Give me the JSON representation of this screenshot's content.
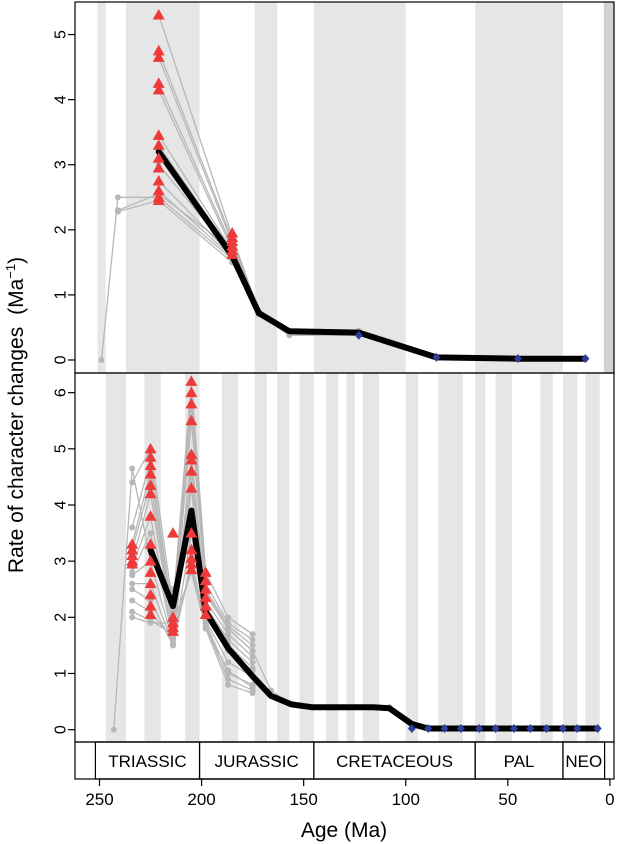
{
  "figure": {
    "ylabel": "Rate of character changes",
    "ylabel_unit": "(Ma",
    "ylabel_unit_exp": "−1",
    "ylabel_unit_close": ")",
    "xlabel": "Age (Ma)"
  },
  "periods": [
    {
      "label": "TRIASSIC",
      "start": 252,
      "end": 201
    },
    {
      "label": "JURASSIC",
      "start": 201,
      "end": 145
    },
    {
      "label": "CRETACEOUS",
      "start": 145,
      "end": 66
    },
    {
      "label": "PAL",
      "start": 66,
      "end": 23
    },
    {
      "label": "NEO",
      "start": 23,
      "end": 2.6
    }
  ],
  "x_axis": {
    "ticks": [
      250,
      200,
      150,
      100,
      50,
      0
    ],
    "tick_labels": [
      "250",
      "200",
      "150",
      "100",
      "50",
      "0"
    ],
    "lim": [
      262,
      -2
    ],
    "reversed": true
  },
  "colors": {
    "band": "#e6e6e6",
    "band_dark": "#d2d2d2",
    "grey_lines": "#b8b8b8",
    "mean_line": "#000000",
    "triangle": "#ee3a3a",
    "diamond": "#2f3c9a"
  },
  "chart_data": [
    {
      "type": "line",
      "panel": "top",
      "ylim": [
        -0.2,
        5.5
      ],
      "yticks": [
        0,
        1,
        2,
        3,
        4,
        5
      ],
      "ytick_labels": [
        "0",
        "1",
        "2",
        "3",
        "4",
        "5"
      ],
      "bands": [
        [
          251,
          247
        ],
        [
          237,
          201
        ],
        [
          174,
          163
        ],
        [
          145,
          100
        ],
        [
          66,
          23
        ],
        [
          3,
          -2
        ]
      ],
      "dark_bands": [
        [
          3,
          -2
        ]
      ],
      "series": [
        {
          "role": "mean",
          "x": [
            221,
            185,
            172,
            157,
            123,
            85,
            45,
            12
          ],
          "values": [
            3.2,
            1.6,
            0.72,
            0.44,
            0.42,
            0.04,
            0.02,
            0.02
          ]
        }
      ],
      "grey_lines": [
        {
          "x": [
            249,
            241,
            221,
            185,
            172,
            157,
            123,
            85,
            45,
            12
          ],
          "values": [
            0,
            2.5,
            2.5,
            1.55,
            0.72,
            0.4,
            0.4,
            0.04,
            0.02,
            0.02
          ]
        },
        {
          "x": [
            241,
            221,
            185,
            172,
            157,
            123
          ],
          "values": [
            2.3,
            2.55,
            1.7,
            0.72,
            0.42,
            0.42
          ]
        },
        {
          "x": [
            241,
            221,
            185,
            172,
            157,
            123
          ],
          "values": [
            2.28,
            2.45,
            1.5,
            0.7,
            0.38,
            0.38
          ]
        },
        {
          "x": [
            221,
            185,
            172,
            157,
            123
          ],
          "values": [
            5.3,
            1.9,
            0.75,
            0.45,
            0.45
          ]
        },
        {
          "x": [
            221,
            185,
            172,
            157,
            123
          ],
          "values": [
            4.75,
            1.85,
            0.74,
            0.44,
            0.44
          ]
        },
        {
          "x": [
            221,
            185,
            172,
            157,
            123
          ],
          "values": [
            4.65,
            1.8,
            0.74,
            0.44,
            0.44
          ]
        },
        {
          "x": [
            221,
            185,
            172,
            157,
            123
          ],
          "values": [
            4.25,
            1.75,
            0.73,
            0.43,
            0.43
          ]
        },
        {
          "x": [
            221,
            185,
            172,
            157,
            123
          ],
          "values": [
            4.15,
            1.7,
            0.73,
            0.43,
            0.43
          ]
        },
        {
          "x": [
            221,
            185,
            172,
            157,
            123
          ],
          "values": [
            3.45,
            1.68,
            0.72,
            0.42,
            0.42
          ]
        },
        {
          "x": [
            221,
            185,
            172,
            157,
            123
          ],
          "values": [
            3.3,
            1.65,
            0.72,
            0.42,
            0.42
          ]
        },
        {
          "x": [
            221,
            185,
            172,
            157,
            123
          ],
          "values": [
            3.0,
            1.62,
            0.71,
            0.42,
            0.42
          ]
        },
        {
          "x": [
            221,
            185,
            172,
            157,
            123
          ],
          "values": [
            2.75,
            1.6,
            0.71,
            0.41,
            0.41
          ]
        },
        {
          "x": [
            221,
            185,
            172,
            157,
            123
          ],
          "values": [
            2.6,
            1.58,
            0.7,
            0.41,
            0.41
          ]
        }
      ],
      "triangles": {
        "x": [
          221,
          221,
          221,
          221,
          221,
          221,
          221,
          221,
          221,
          221,
          221,
          221,
          221,
          185,
          185,
          185,
          185,
          185,
          185
        ],
        "values": [
          5.3,
          4.75,
          4.65,
          4.25,
          4.15,
          3.45,
          3.3,
          3.1,
          2.95,
          2.75,
          2.6,
          2.5,
          2.45,
          1.95,
          1.88,
          1.82,
          1.75,
          1.68,
          1.62
        ]
      },
      "diamonds": {
        "x": [
          123,
          85,
          45,
          12
        ],
        "values": [
          0.38,
          0.04,
          0.02,
          0.02
        ]
      }
    },
    {
      "type": "line",
      "panel": "bottom",
      "ylim": [
        -0.22,
        6.35
      ],
      "yticks": [
        0,
        1,
        2,
        3,
        4,
        5,
        6
      ],
      "ytick_labels": [
        "0",
        "1",
        "2",
        "3",
        "4",
        "5",
        "6"
      ],
      "bands": [
        [
          247,
          237
        ],
        [
          228,
          220
        ],
        [
          208,
          201
        ],
        [
          190,
          182
        ],
        [
          174,
          168
        ],
        [
          163,
          157
        ],
        [
          152,
          145
        ],
        [
          139,
          133
        ],
        [
          129,
          125
        ],
        [
          121,
          113
        ],
        [
          100,
          94
        ],
        [
          84,
          72
        ],
        [
          66,
          61
        ],
        [
          56,
          48
        ],
        [
          34,
          28
        ],
        [
          23,
          16
        ],
        [
          12,
          5
        ]
      ],
      "dark_bands": [],
      "series": [
        {
          "role": "mean",
          "x": [
            225,
            214,
            205,
            198,
            187,
            175,
            166,
            156,
            146,
            138,
            131,
            124,
            116,
            108,
            97,
            89,
            81,
            73,
            64,
            56,
            47,
            39,
            31,
            23,
            16,
            6
          ],
          "values": [
            3.2,
            2.2,
            3.9,
            2.1,
            1.45,
            0.95,
            0.6,
            0.45,
            0.4,
            0.4,
            0.4,
            0.4,
            0.4,
            0.38,
            0.1,
            0.02,
            0.02,
            0.02,
            0.02,
            0.02,
            0.02,
            0.02,
            0.02,
            0.02,
            0.02,
            0.02
          ]
        }
      ],
      "grey_lines": [
        {
          "x": [
            243,
            234,
            225,
            214,
            205,
            198,
            187,
            175,
            166,
            156,
            146,
            138,
            131,
            124,
            116,
            108,
            97,
            89
          ],
          "values": [
            0,
            4.65,
            3.0,
            2.5,
            3.5,
            2.4,
            1.8,
            1.4,
            0.7,
            0.45,
            0.4,
            0.4,
            0.4,
            0.4,
            0.4,
            0.4,
            0.1,
            0.02
          ]
        },
        {
          "x": [
            234,
            225,
            214,
            205,
            198,
            187,
            175
          ],
          "values": [
            4.4,
            5.0,
            2.2,
            6.2,
            2.8,
            2.0,
            1.7
          ]
        },
        {
          "x": [
            234,
            225,
            214,
            205,
            198,
            187,
            175
          ],
          "values": [
            3.6,
            4.8,
            2.0,
            6.0,
            2.6,
            1.9,
            1.6
          ]
        },
        {
          "x": [
            234,
            225,
            214,
            205,
            198,
            187,
            175
          ],
          "values": [
            3.3,
            4.6,
            1.9,
            5.8,
            2.5,
            1.85,
            1.5
          ]
        },
        {
          "x": [
            234,
            225,
            214,
            205,
            198,
            187,
            175
          ],
          "values": [
            3.2,
            4.4,
            1.8,
            5.5,
            2.45,
            1.8,
            1.4
          ]
        },
        {
          "x": [
            234,
            225,
            214,
            205,
            198,
            187,
            175
          ],
          "values": [
            3.0,
            4.2,
            1.75,
            4.9,
            2.3,
            1.7,
            1.3
          ]
        },
        {
          "x": [
            234,
            225,
            214,
            205,
            198,
            187,
            175
          ],
          "values": [
            2.9,
            3.8,
            1.65,
            4.8,
            2.2,
            1.6,
            1.2
          ]
        },
        {
          "x": [
            234,
            225,
            214,
            205,
            198,
            187,
            175
          ],
          "values": [
            2.8,
            3.5,
            1.6,
            4.5,
            2.1,
            1.5,
            1.1
          ]
        },
        {
          "x": [
            234,
            225,
            214,
            205,
            198,
            187,
            175
          ],
          "values": [
            2.75,
            3.0,
            1.55,
            4.3,
            2.0,
            1.4,
            1.05
          ]
        },
        {
          "x": [
            234,
            225,
            214,
            205,
            198,
            187,
            175
          ],
          "values": [
            2.6,
            2.6,
            1.5,
            3.5,
            1.95,
            1.2,
            0.95
          ]
        },
        {
          "x": [
            234,
            225,
            214,
            205,
            198,
            187,
            175
          ],
          "values": [
            2.5,
            2.3,
            1.5,
            3.0,
            1.9,
            1.0,
            0.8
          ]
        },
        {
          "x": [
            234,
            225,
            214,
            205,
            198,
            187,
            175
          ],
          "values": [
            2.3,
            2.1,
            1.6,
            2.9,
            1.85,
            0.9,
            0.7
          ]
        },
        {
          "x": [
            234,
            225,
            214,
            205,
            198,
            187,
            175
          ],
          "values": [
            2.1,
            1.95,
            1.7,
            2.85,
            1.8,
            0.8,
            0.65
          ]
        },
        {
          "x": [
            234,
            225,
            214,
            205,
            198,
            187,
            175
          ],
          "values": [
            2.0,
            1.9,
            1.9,
            2.8,
            1.8,
            1.05,
            0.75
          ]
        }
      ],
      "triangles": {
        "x": [
          234,
          234,
          234,
          234,
          234,
          225,
          225,
          225,
          225,
          225,
          225,
          225,
          225,
          225,
          225,
          225,
          225,
          225,
          225,
          214,
          214,
          214,
          214,
          214,
          205,
          205,
          205,
          205,
          205,
          205,
          205,
          205,
          205,
          205,
          205,
          205,
          205,
          198,
          198,
          198,
          198,
          198,
          198
        ],
        "values": [
          3.3,
          3.2,
          3.1,
          3.0,
          2.95,
          5.0,
          4.85,
          4.7,
          4.55,
          4.35,
          4.2,
          3.8,
          3.3,
          3.0,
          2.8,
          2.6,
          2.4,
          2.2,
          2.05,
          3.5,
          2.0,
          1.9,
          1.82,
          1.75,
          6.2,
          6.0,
          5.8,
          5.5,
          4.9,
          4.8,
          4.6,
          4.3,
          3.5,
          3.2,
          3.05,
          2.95,
          2.85,
          2.8,
          2.65,
          2.5,
          2.35,
          2.2,
          2.05
        ]
      },
      "diamonds": {
        "x": [
          97,
          89,
          81,
          73,
          64,
          56,
          47,
          39,
          31,
          23,
          16,
          6
        ],
        "values": [
          0.02,
          0.02,
          0.02,
          0.02,
          0.02,
          0.02,
          0.02,
          0.02,
          0.02,
          0.02,
          0.02,
          0.02
        ]
      }
    }
  ]
}
